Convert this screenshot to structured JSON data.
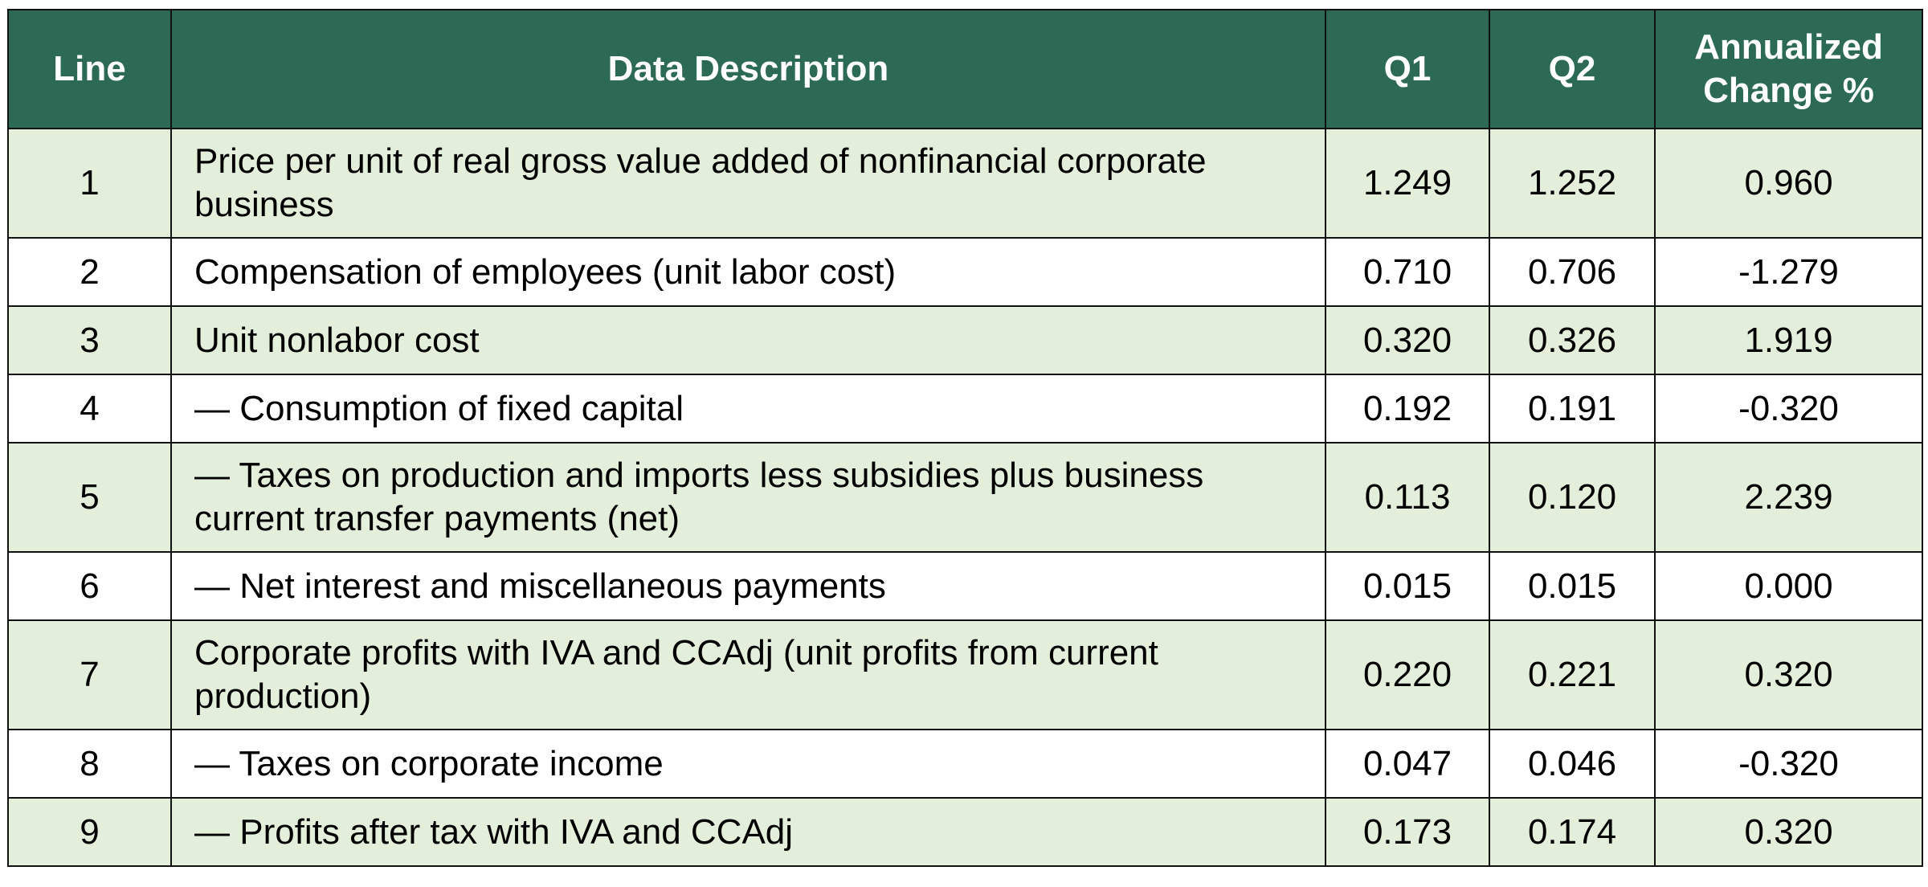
{
  "table": {
    "headers": {
      "line": "Line",
      "description": "Data Description",
      "q1": "Q1",
      "q2": "Q2",
      "change": "Annualized Change %"
    },
    "rows": [
      {
        "line": "1",
        "description": "Price per unit of real gross value added of nonfinancial corporate business",
        "q1": "1.249",
        "q2": "1.252",
        "change": "0.960"
      },
      {
        "line": "2",
        "description": "Compensation of employees (unit labor cost)",
        "q1": "0.710",
        "q2": "0.706",
        "change": "-1.279"
      },
      {
        "line": "3",
        "description": "Unit nonlabor cost",
        "q1": "0.320",
        "q2": "0.326",
        "change": "1.919"
      },
      {
        "line": "4",
        "description": "— Consumption of fixed capital",
        "q1": "0.192",
        "q2": "0.191",
        "change": "-0.320"
      },
      {
        "line": "5",
        "description": "— Taxes on production and imports less subsidies plus business current transfer payments (net)",
        "q1": "0.113",
        "q2": "0.120",
        "change": "2.239"
      },
      {
        "line": "6",
        "description": "— Net interest and miscellaneous payments",
        "q1": "0.015",
        "q2": "0.015",
        "change": "0.000"
      },
      {
        "line": "7",
        "description": "Corporate profits with IVA and CCAdj (unit profits from current production)",
        "q1": "0.220",
        "q2": "0.221",
        "change": "0.320"
      },
      {
        "line": "8",
        "description": "— Taxes on corporate income",
        "q1": "0.047",
        "q2": "0.046",
        "change": "-0.320"
      },
      {
        "line": "9",
        "description": "— Profits after tax with IVA and CCAdj",
        "q1": "0.173",
        "q2": "0.174",
        "change": "0.320"
      }
    ]
  },
  "colors": {
    "header_bg": "#2d6a55",
    "header_text": "#ffffff",
    "shaded_row_bg": "#e3eedb",
    "plain_row_bg": "#ffffff",
    "border": "#111111"
  }
}
